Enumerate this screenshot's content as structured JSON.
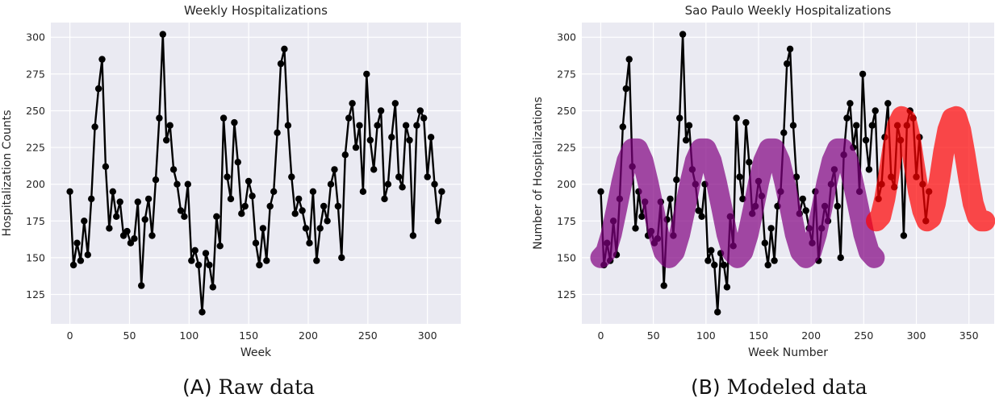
{
  "chart_data": [
    {
      "type": "line",
      "title": "Weekly Hospitalizations",
      "xlabel": "Week",
      "ylabel": "Hospitalization Counts",
      "xlim": [
        -16,
        328
      ],
      "ylim": [
        105,
        310
      ],
      "xticks": [
        0,
        50,
        100,
        150,
        200,
        250,
        300
      ],
      "yticks": [
        125,
        150,
        175,
        200,
        225,
        250,
        275,
        300
      ],
      "grid": true,
      "series": [
        {
          "color": "#000000",
          "x": [
            0,
            3,
            6,
            9,
            12,
            15,
            18,
            21,
            24,
            27,
            30,
            33,
            36,
            39,
            42,
            45,
            48,
            51,
            54,
            57,
            60,
            63,
            66,
            69,
            72,
            75,
            78,
            81,
            84,
            87,
            90,
            93,
            96,
            99,
            102,
            105,
            108,
            111,
            114,
            117,
            120,
            123,
            126,
            129,
            132,
            135,
            138,
            141,
            144,
            147,
            150,
            153,
            156,
            159,
            162,
            165,
            168,
            171,
            174,
            177,
            180,
            183,
            186,
            189,
            192,
            195,
            198,
            201,
            204,
            207,
            210,
            213,
            216,
            219,
            222,
            225,
            228,
            231,
            234,
            237,
            240,
            243,
            246,
            249,
            252,
            255,
            258,
            261,
            264,
            267,
            270,
            273,
            276,
            279,
            282,
            285,
            288,
            291,
            294,
            297,
            300,
            303,
            306,
            309,
            312
          ],
          "y": [
            195,
            145,
            160,
            148,
            175,
            152,
            190,
            239,
            265,
            285,
            212,
            170,
            195,
            178,
            188,
            165,
            168,
            160,
            163,
            188,
            131,
            176,
            190,
            165,
            203,
            245,
            302,
            230,
            240,
            210,
            200,
            182,
            178,
            200,
            148,
            155,
            145,
            113,
            153,
            145,
            130,
            178,
            158,
            245,
            205,
            190,
            242,
            215,
            180,
            185,
            202,
            192,
            160,
            145,
            170,
            148,
            185,
            195,
            235,
            282,
            292,
            240,
            205,
            180,
            190,
            182,
            170,
            160,
            195,
            148,
            170,
            185,
            175,
            200,
            210,
            185,
            150,
            220,
            245,
            255,
            225,
            240,
            195,
            275,
            230,
            210,
            240,
            250,
            190,
            200,
            232,
            255,
            205,
            198,
            240,
            230,
            165,
            240,
            250,
            245,
            205,
            232,
            200,
            175,
            195
          ]
        }
      ]
    },
    {
      "type": "line",
      "title": "Sao Paulo Weekly Hospitalizations",
      "xlabel": "Week Number",
      "ylabel": "Number of Hospitalizations",
      "xlim": [
        -18,
        374
      ],
      "ylim": [
        105,
        310
      ],
      "xticks": [
        0,
        50,
        100,
        150,
        200,
        250,
        300,
        350
      ],
      "yticks": [
        125,
        150,
        175,
        200,
        225,
        250,
        275,
        300
      ],
      "grid": true,
      "series": [
        {
          "color": "#000000",
          "x": [
            0,
            3,
            6,
            9,
            12,
            15,
            18,
            21,
            24,
            27,
            30,
            33,
            36,
            39,
            42,
            45,
            48,
            51,
            54,
            57,
            60,
            63,
            66,
            69,
            72,
            75,
            78,
            81,
            84,
            87,
            90,
            93,
            96,
            99,
            102,
            105,
            108,
            111,
            114,
            117,
            120,
            123,
            126,
            129,
            132,
            135,
            138,
            141,
            144,
            147,
            150,
            153,
            156,
            159,
            162,
            165,
            168,
            171,
            174,
            177,
            180,
            183,
            186,
            189,
            192,
            195,
            198,
            201,
            204,
            207,
            210,
            213,
            216,
            219,
            222,
            225,
            228,
            231,
            234,
            237,
            240,
            243,
            246,
            249,
            252,
            255,
            258,
            261,
            264,
            267,
            270,
            273,
            276,
            279,
            282,
            285,
            288,
            291,
            294,
            297,
            300,
            303,
            306,
            309,
            312
          ],
          "y": [
            195,
            145,
            160,
            148,
            175,
            152,
            190,
            239,
            265,
            285,
            212,
            170,
            195,
            178,
            188,
            165,
            168,
            160,
            163,
            188,
            131,
            176,
            190,
            165,
            203,
            245,
            302,
            230,
            240,
            210,
            200,
            182,
            178,
            200,
            148,
            155,
            145,
            113,
            153,
            145,
            130,
            178,
            158,
            245,
            205,
            190,
            242,
            215,
            180,
            185,
            202,
            192,
            160,
            145,
            170,
            148,
            185,
            195,
            235,
            282,
            292,
            240,
            205,
            180,
            190,
            182,
            170,
            160,
            195,
            148,
            170,
            185,
            175,
            200,
            210,
            185,
            150,
            220,
            245,
            255,
            225,
            240,
            195,
            275,
            230,
            210,
            240,
            250,
            190,
            200,
            232,
            255,
            205,
            198,
            240,
            230,
            165,
            240,
            250,
            245,
            205,
            232,
            200,
            175,
            195
          ]
        },
        {
          "color": "#800080",
          "x": [
            0,
            5,
            10,
            15,
            20,
            25,
            30,
            35,
            40,
            45,
            50,
            55,
            60,
            65,
            70,
            75,
            80,
            85,
            90,
            95,
            100,
            105,
            110,
            115,
            120,
            125,
            130,
            135,
            140,
            145,
            150,
            155,
            160,
            165,
            170,
            175,
            180,
            185,
            190,
            195,
            200,
            205,
            210,
            215,
            220,
            225,
            230,
            235,
            240,
            245,
            250,
            255,
            260
          ],
          "y": [
            150,
            154,
            166,
            183,
            201,
            216,
            224,
            224,
            216,
            201,
            184,
            166,
            154,
            150,
            154,
            166,
            183,
            201,
            216,
            224,
            224,
            216,
            201,
            184,
            166,
            154,
            150,
            154,
            166,
            183,
            201,
            216,
            224,
            224,
            216,
            201,
            184,
            166,
            154,
            150,
            154,
            166,
            183,
            201,
            216,
            224,
            224,
            216,
            201,
            184,
            166,
            154,
            150
          ]
        },
        {
          "color": "#ff0000",
          "x": [
            262,
            266,
            270,
            274,
            278,
            282,
            286,
            290,
            294,
            298,
            302,
            306,
            310,
            314,
            318,
            322,
            326,
            330,
            334,
            338,
            342,
            346,
            350,
            354,
            358,
            362,
            365
          ],
          "y": [
            175,
            178,
            190,
            207,
            226,
            240,
            246,
            244,
            232,
            213,
            195,
            182,
            175,
            177,
            187,
            203,
            222,
            237,
            245,
            246,
            237,
            221,
            203,
            187,
            178,
            175,
            175
          ]
        }
      ]
    }
  ],
  "captions": [
    {
      "letter": "(A)",
      "text": "Raw data"
    },
    {
      "letter": "(B)",
      "text": "Modeled data"
    }
  ]
}
